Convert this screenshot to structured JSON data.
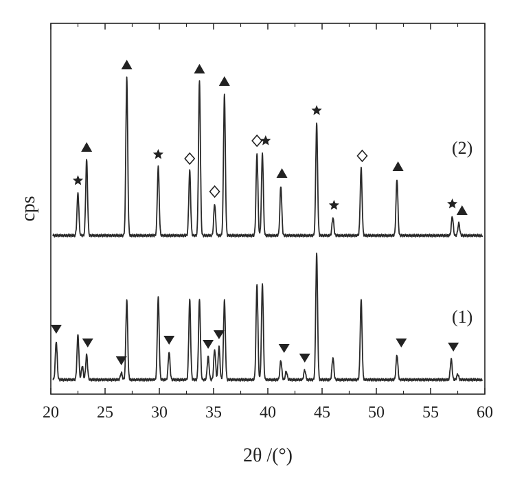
{
  "chart_data": {
    "type": "line",
    "xlabel": "2θ /(°)",
    "ylabel": "cps",
    "xlim": [
      20,
      60
    ],
    "xticks": [
      "20",
      "25",
      "30",
      "35",
      "40",
      "45",
      "50",
      "55",
      "60"
    ],
    "grid": false,
    "series": [
      {
        "name": "(1)",
        "baseline": 0,
        "peaks": [
          [
            20.5,
            28
          ],
          [
            22.5,
            33
          ],
          [
            22.9,
            10
          ],
          [
            23.3,
            18
          ],
          [
            26.5,
            5
          ],
          [
            27.0,
            58
          ],
          [
            29.9,
            60
          ],
          [
            30.9,
            20
          ],
          [
            32.8,
            58
          ],
          [
            33.7,
            58
          ],
          [
            34.5,
            17
          ],
          [
            35.1,
            22
          ],
          [
            35.5,
            24
          ],
          [
            36.0,
            58
          ],
          [
            39.0,
            70
          ],
          [
            39.5,
            70
          ],
          [
            41.2,
            14
          ],
          [
            41.7,
            6
          ],
          [
            43.4,
            7
          ],
          [
            44.5,
            92
          ],
          [
            46.0,
            16
          ],
          [
            48.6,
            58
          ],
          [
            51.9,
            18
          ],
          [
            56.9,
            15
          ],
          [
            57.5,
            4
          ]
        ],
        "markers": [
          {
            "symbol": "triangle-down",
            "x": 20.5
          },
          {
            "symbol": "triangle-down",
            "x": 23.4
          },
          {
            "symbol": "triangle-down",
            "x": 26.5
          },
          {
            "symbol": "triangle-down",
            "x": 30.9
          },
          {
            "symbol": "triangle-down",
            "x": 34.5
          },
          {
            "symbol": "triangle-down",
            "x": 35.5
          },
          {
            "symbol": "triangle-down",
            "x": 41.5
          },
          {
            "symbol": "triangle-down",
            "x": 43.4
          },
          {
            "symbol": "triangle-down",
            "x": 52.3
          },
          {
            "symbol": "triangle-down",
            "x": 57.1
          }
        ]
      },
      {
        "name": "(2)",
        "baseline": 100,
        "peaks": [
          [
            22.5,
            31
          ],
          [
            23.3,
            55
          ],
          [
            27.0,
            115
          ],
          [
            29.9,
            50
          ],
          [
            32.8,
            47
          ],
          [
            33.7,
            112
          ],
          [
            35.1,
            23
          ],
          [
            36.0,
            103
          ],
          [
            39.0,
            60
          ],
          [
            39.5,
            60
          ],
          [
            41.2,
            36
          ],
          [
            44.5,
            82
          ],
          [
            46.0,
            13
          ],
          [
            48.6,
            49
          ],
          [
            51.9,
            41
          ],
          [
            57.0,
            14
          ],
          [
            57.6,
            9
          ]
        ],
        "markers": [
          {
            "symbol": "star",
            "x": 22.5
          },
          {
            "symbol": "triangle-up",
            "x": 23.3
          },
          {
            "symbol": "triangle-up",
            "x": 27.0
          },
          {
            "symbol": "star",
            "x": 29.9
          },
          {
            "symbol": "diamond",
            "x": 32.8
          },
          {
            "symbol": "triangle-up",
            "x": 33.7
          },
          {
            "symbol": "diamond",
            "x": 35.1
          },
          {
            "symbol": "triangle-up",
            "x": 36.0
          },
          {
            "symbol": "diamond",
            "x": 39.0
          },
          {
            "symbol": "star",
            "x": 39.8
          },
          {
            "symbol": "triangle-up",
            "x": 41.3
          },
          {
            "symbol": "star",
            "x": 44.5
          },
          {
            "symbol": "star",
            "x": 46.1
          },
          {
            "symbol": "diamond",
            "x": 48.7
          },
          {
            "symbol": "triangle-up",
            "x": 52.0
          },
          {
            "symbol": "star",
            "x": 57.0
          },
          {
            "symbol": "triangle-up",
            "x": 57.9
          }
        ]
      }
    ]
  }
}
